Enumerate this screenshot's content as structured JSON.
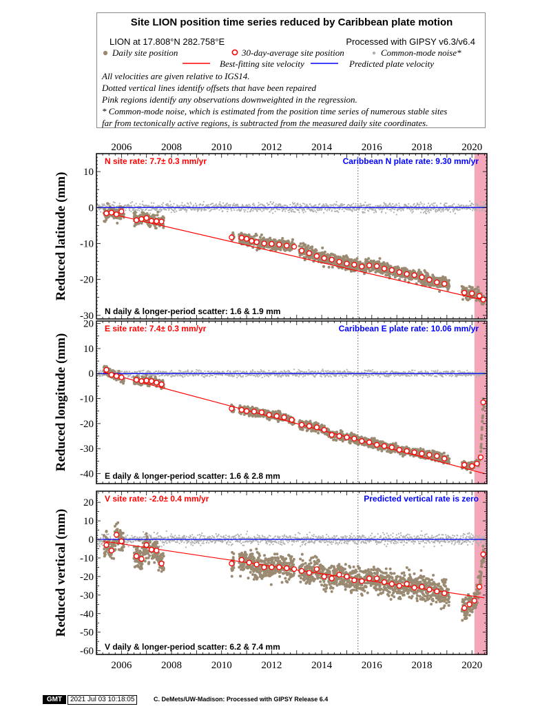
{
  "legend": {
    "title": "Site LION position time series reduced by Caribbean plate motion",
    "location": "LION at 17.808°N 282.758°E",
    "processing": "Processed with GIPSY v6.3/v6.4",
    "daily_label": "Daily site position",
    "avg_label": "30-day-average site position",
    "noise_label": "Common-mode noise*",
    "fit_label": "Best-fitting site velocity",
    "plate_label": "Predicted plate velocity",
    "note1": "All velocities are given relative to IGS14.",
    "note2": "Dotted vertical lines identify offsets that have been repaired",
    "note3": "Pink regions identify any observations downweighted in the regression.",
    "note4": "* Common-mode noise, which is estimated from the position time series of numerous stable sites",
    "note5": "far from tectonically active regions, is subtracted from the measured daily site coordinates.",
    "colors": {
      "daily": "#9b8a72",
      "avg_edge": "#ff0000",
      "noise": "#b0b0b0",
      "fit": "#ff0000",
      "plate": "#0000ff",
      "pink": "#f4a7b9"
    }
  },
  "chart_data": [
    {
      "type": "scatter",
      "panel": "north",
      "ylabel": "Reduced latitude (mm)",
      "ylim": [
        -31,
        15
      ],
      "yticks": [
        10,
        0,
        -10,
        -20,
        -30
      ],
      "xlim": [
        2005.0,
        2020.6
      ],
      "xticks": [
        2006,
        2008,
        2010,
        2012,
        2014,
        2016,
        2018,
        2020
      ],
      "rate_label": "N site rate:  7.7± 0.3 mm/yr",
      "plate_label": "Caribbean N plate rate: 9.30 mm/yr",
      "scatter_label": "N daily & longer-period scatter:   1.6 &   1.9 mm",
      "fit_line": {
        "x": [
          2005.3,
          2020.5
        ],
        "y": [
          -1.3,
          -25.8
        ]
      },
      "plate_line": 0,
      "offset_lines": [
        2015.45
      ],
      "pink_region": [
        2020.1,
        2020.6
      ],
      "data_spans": [
        [
          2005.3,
          2006.1
        ],
        [
          2006.5,
          2007.7
        ],
        [
          2010.4,
          2010.5
        ],
        [
          2010.7,
          2012.9
        ],
        [
          2013.1,
          2019.1
        ],
        [
          2019.6,
          2020.5
        ]
      ],
      "daily_scatter_mm": 1.6,
      "averages": [
        [
          2005.4,
          -1.6
        ],
        [
          2005.6,
          -1.4
        ],
        [
          2005.8,
          -1.9
        ],
        [
          2006.0,
          -1.1
        ],
        [
          2006.6,
          -3.5
        ],
        [
          2006.8,
          -3.2
        ],
        [
          2007.0,
          -2.9
        ],
        [
          2007.2,
          -3.7
        ],
        [
          2007.4,
          -3.8
        ],
        [
          2007.6,
          -3.9
        ],
        [
          2010.4,
          -8.3
        ],
        [
          2010.8,
          -8.4
        ],
        [
          2011.0,
          -8.7
        ],
        [
          2011.2,
          -9.3
        ],
        [
          2011.4,
          -9.6
        ],
        [
          2011.7,
          -10.0
        ],
        [
          2012.0,
          -10.1
        ],
        [
          2012.3,
          -10.3
        ],
        [
          2012.6,
          -10.6
        ],
        [
          2012.9,
          -10.9
        ],
        [
          2013.2,
          -12.0
        ],
        [
          2013.5,
          -12.7
        ],
        [
          2013.8,
          -13.5
        ],
        [
          2014.1,
          -14.1
        ],
        [
          2014.4,
          -14.5
        ],
        [
          2014.7,
          -15.1
        ],
        [
          2015.0,
          -15.6
        ],
        [
          2015.3,
          -15.9
        ],
        [
          2015.6,
          -16.4
        ],
        [
          2015.9,
          -16.1
        ],
        [
          2016.2,
          -16.3
        ],
        [
          2016.5,
          -17.0
        ],
        [
          2016.8,
          -17.4
        ],
        [
          2017.1,
          -18.0
        ],
        [
          2017.4,
          -18.5
        ],
        [
          2017.7,
          -18.8
        ],
        [
          2018.0,
          -19.4
        ],
        [
          2018.3,
          -20.1
        ],
        [
          2018.6,
          -20.8
        ],
        [
          2018.9,
          -21.2
        ],
        [
          2019.7,
          -23.7
        ],
        [
          2020.0,
          -23.9
        ],
        [
          2020.3,
          -24.6
        ],
        [
          2020.45,
          -25.6
        ]
      ]
    },
    {
      "type": "scatter",
      "panel": "east",
      "ylabel": "Reduced longitude (mm)",
      "ylim": [
        -44,
        21
      ],
      "yticks": [
        20,
        10,
        0,
        -10,
        -20,
        -30,
        -40
      ],
      "xlim": [
        2005.0,
        2020.6
      ],
      "xticks": [
        2006,
        2008,
        2010,
        2012,
        2014,
        2016,
        2018,
        2020
      ],
      "rate_label": "E site rate:  7.4± 0.3 mm/yr",
      "plate_label": "Caribbean E plate rate: 10.06 mm/yr",
      "scatter_label": "E daily & longer-period scatter:   1.6 &   2.8 mm",
      "fit_line": {
        "x": [
          2005.3,
          2020.5
        ],
        "y": [
          0.5,
          -40.0
        ]
      },
      "plate_line": 0,
      "offset_lines": [
        2015.45
      ],
      "pink_region": [
        2020.1,
        2020.6
      ],
      "data_spans": [
        [
          2005.3,
          2006.1
        ],
        [
          2006.5,
          2007.7
        ],
        [
          2010.4,
          2010.5
        ],
        [
          2010.7,
          2012.9
        ],
        [
          2013.1,
          2019.1
        ],
        [
          2019.6,
          2020.5
        ]
      ],
      "daily_scatter_mm": 1.6,
      "averages": [
        [
          2005.4,
          1.5
        ],
        [
          2005.6,
          -0.5
        ],
        [
          2005.8,
          -1.0
        ],
        [
          2006.0,
          -1.5
        ],
        [
          2006.6,
          -2.5
        ],
        [
          2006.8,
          -3.0
        ],
        [
          2007.0,
          -2.8
        ],
        [
          2007.2,
          -3.0
        ],
        [
          2007.4,
          -3.6
        ],
        [
          2007.6,
          -4.3
        ],
        [
          2010.4,
          -14.0
        ],
        [
          2010.8,
          -14.5
        ],
        [
          2011.0,
          -15.0
        ],
        [
          2011.3,
          -15.2
        ],
        [
          2011.6,
          -15.5
        ],
        [
          2011.9,
          -16.5
        ],
        [
          2012.2,
          -17.0
        ],
        [
          2012.5,
          -17.5
        ],
        [
          2012.8,
          -18.5
        ],
        [
          2013.2,
          -20.5
        ],
        [
          2013.5,
          -21.0
        ],
        [
          2013.8,
          -21.5
        ],
        [
          2014.1,
          -22.5
        ],
        [
          2014.4,
          -24.5
        ],
        [
          2014.7,
          -25.0
        ],
        [
          2015.0,
          -25.5
        ],
        [
          2015.3,
          -26.0
        ],
        [
          2015.6,
          -27.0
        ],
        [
          2015.9,
          -27.5
        ],
        [
          2016.2,
          -28.5
        ],
        [
          2016.5,
          -29.0
        ],
        [
          2016.8,
          -29.5
        ],
        [
          2017.1,
          -30.5
        ],
        [
          2017.4,
          -31.0
        ],
        [
          2017.7,
          -31.5
        ],
        [
          2018.0,
          -32.0
        ],
        [
          2018.3,
          -32.5
        ],
        [
          2018.6,
          -33.0
        ],
        [
          2018.9,
          -34.0
        ],
        [
          2019.7,
          -36.5
        ],
        [
          2020.0,
          -37.0
        ],
        [
          2020.2,
          -36.0
        ],
        [
          2020.35,
          -33.5
        ],
        [
          2020.45,
          -11.5
        ]
      ]
    },
    {
      "type": "scatter",
      "panel": "vertical",
      "ylabel": "Reduced vertical (mm)",
      "ylim": [
        -62,
        26
      ],
      "yticks": [
        20,
        10,
        0,
        -10,
        -20,
        -30,
        -40,
        -50,
        -60
      ],
      "xlim": [
        2005.0,
        2020.6
      ],
      "xticks": [
        2006,
        2008,
        2010,
        2012,
        2014,
        2016,
        2018,
        2020
      ],
      "rate_label": "V site rate:  -2.0± 0.4 mm/yr",
      "plate_label": "Predicted vertical rate is zero",
      "scatter_label": "V daily & longer-period scatter:   6.2 &   7.4 mm",
      "fit_line": {
        "x": [
          2005.3,
          2020.5
        ],
        "y": [
          -1.0,
          -31.5
        ]
      },
      "plate_line": 0,
      "offset_lines": [
        2015.45
      ],
      "pink_region": [
        2020.1,
        2020.6
      ],
      "data_spans": [
        [
          2005.3,
          2006.1
        ],
        [
          2006.5,
          2007.7
        ],
        [
          2010.4,
          2010.5
        ],
        [
          2010.7,
          2012.9
        ],
        [
          2013.1,
          2019.1
        ],
        [
          2019.6,
          2020.5
        ]
      ],
      "daily_scatter_mm": 6.2,
      "averages": [
        [
          2005.4,
          -3.0
        ],
        [
          2005.6,
          -6.0
        ],
        [
          2005.8,
          2.5
        ],
        [
          2006.0,
          -1.0
        ],
        [
          2006.6,
          -9.0
        ],
        [
          2006.8,
          -10.5
        ],
        [
          2007.0,
          -3.0
        ],
        [
          2007.2,
          -5.5
        ],
        [
          2007.4,
          -6.0
        ],
        [
          2007.6,
          -13.0
        ],
        [
          2010.4,
          -13.0
        ],
        [
          2010.8,
          -11.0
        ],
        [
          2011.1,
          -12.5
        ],
        [
          2011.4,
          -13.5
        ],
        [
          2011.7,
          -15.0
        ],
        [
          2012.0,
          -15.0
        ],
        [
          2012.3,
          -15.0
        ],
        [
          2012.6,
          -15.5
        ],
        [
          2012.9,
          -16.0
        ],
        [
          2013.2,
          -17.0
        ],
        [
          2013.5,
          -18.0
        ],
        [
          2013.8,
          -16.0
        ],
        [
          2014.1,
          -20.0
        ],
        [
          2014.4,
          -21.0
        ],
        [
          2014.7,
          -19.0
        ],
        [
          2015.0,
          -20.0
        ],
        [
          2015.3,
          -22.0
        ],
        [
          2015.6,
          -22.5
        ],
        [
          2015.9,
          -21.0
        ],
        [
          2016.2,
          -21.0
        ],
        [
          2016.5,
          -23.0
        ],
        [
          2016.8,
          -24.0
        ],
        [
          2017.1,
          -25.0
        ],
        [
          2017.4,
          -24.0
        ],
        [
          2017.7,
          -26.0
        ],
        [
          2018.0,
          -25.5
        ],
        [
          2018.3,
          -27.0
        ],
        [
          2018.6,
          -28.0
        ],
        [
          2018.9,
          -29.0
        ],
        [
          2019.7,
          -37.0
        ],
        [
          2019.9,
          -35.0
        ],
        [
          2020.1,
          -33.0
        ],
        [
          2020.3,
          -25.5
        ],
        [
          2020.45,
          -8.0
        ]
      ]
    }
  ],
  "footer": {
    "logo": "GMT",
    "timestamp": "2021 Jul 03 10:18:05",
    "credit": "C. DeMets/UW-Madison: Processed with GIPSY Release 6.4"
  }
}
